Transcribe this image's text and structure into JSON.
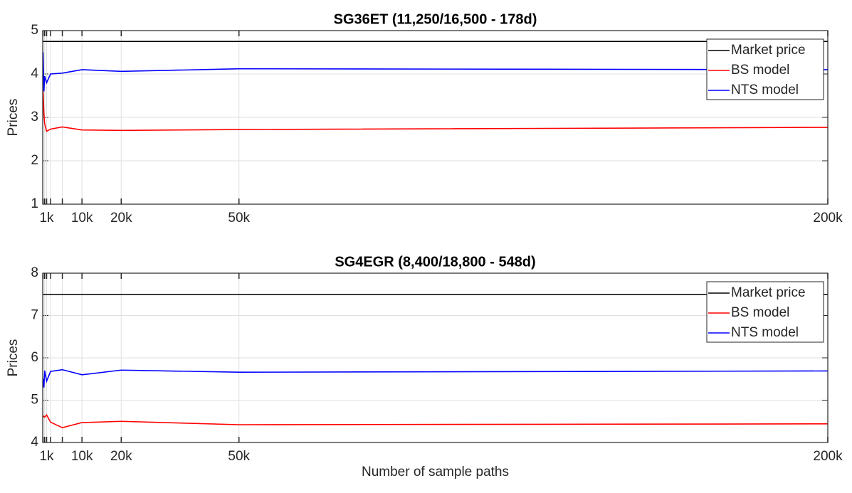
{
  "chart_data": [
    {
      "type": "line",
      "title": "SG36ET (11,250/16,500 - 178d)",
      "ylabel": "Prices",
      "x": [
        100,
        300,
        500,
        1000,
        2000,
        5000,
        10000,
        20000,
        50000,
        200000
      ],
      "xlim": [
        0,
        200000
      ],
      "xticks": [
        {
          "value": 1000,
          "label": "1k"
        },
        {
          "value": 10000,
          "label": "10k"
        },
        {
          "value": 20000,
          "label": "20k"
        },
        {
          "value": 50000,
          "label": "50k"
        },
        {
          "value": 200000,
          "label": "200k"
        }
      ],
      "minor_xticks": [
        100,
        500,
        2000,
        5000
      ],
      "ylim": [
        1,
        5
      ],
      "yticks": [
        1,
        2,
        3,
        4,
        5
      ],
      "grid": true,
      "legend": "northeast",
      "series": [
        {
          "name": "Market price",
          "color": "#000000",
          "values": [
            4.75,
            4.75,
            4.75,
            4.75,
            4.75,
            4.75,
            4.75,
            4.75,
            4.75,
            4.75
          ]
        },
        {
          "name": "BS model",
          "color": "#ff0000",
          "values": [
            3.6,
            3.1,
            2.85,
            2.68,
            2.73,
            2.78,
            2.71,
            2.7,
            2.72,
            2.77
          ]
        },
        {
          "name": "NTS model",
          "color": "#0000ff",
          "values": [
            4.5,
            3.6,
            3.95,
            3.8,
            4.0,
            4.02,
            4.1,
            4.06,
            4.12,
            4.1
          ]
        }
      ]
    },
    {
      "type": "line",
      "title": "SG4EGR (8,400/18,800 - 548d)",
      "ylabel": "Prices",
      "xlabel": "Number of sample paths",
      "x": [
        100,
        300,
        500,
        1000,
        2000,
        5000,
        10000,
        20000,
        50000,
        200000
      ],
      "xlim": [
        0,
        200000
      ],
      "xticks": [
        {
          "value": 1000,
          "label": "1k"
        },
        {
          "value": 10000,
          "label": "10k"
        },
        {
          "value": 20000,
          "label": "20k"
        },
        {
          "value": 50000,
          "label": "50k"
        },
        {
          "value": 200000,
          "label": "200k"
        }
      ],
      "minor_xticks": [
        100,
        500,
        2000,
        5000
      ],
      "ylim": [
        4,
        8
      ],
      "yticks": [
        4,
        5,
        6,
        7,
        8
      ],
      "grid": true,
      "legend": "northeast",
      "series": [
        {
          "name": "Market price",
          "color": "#000000",
          "values": [
            7.5,
            7.5,
            7.5,
            7.5,
            7.5,
            7.5,
            7.5,
            7.5,
            7.5,
            7.5
          ]
        },
        {
          "name": "BS model",
          "color": "#ff0000",
          "values": [
            4.6,
            4.62,
            4.6,
            4.65,
            4.48,
            4.35,
            4.47,
            4.5,
            4.42,
            4.44
          ]
        },
        {
          "name": "NTS model",
          "color": "#0000ff",
          "values": [
            5.5,
            5.3,
            5.7,
            5.45,
            5.68,
            5.72,
            5.6,
            5.71,
            5.66,
            5.69
          ]
        }
      ]
    }
  ]
}
